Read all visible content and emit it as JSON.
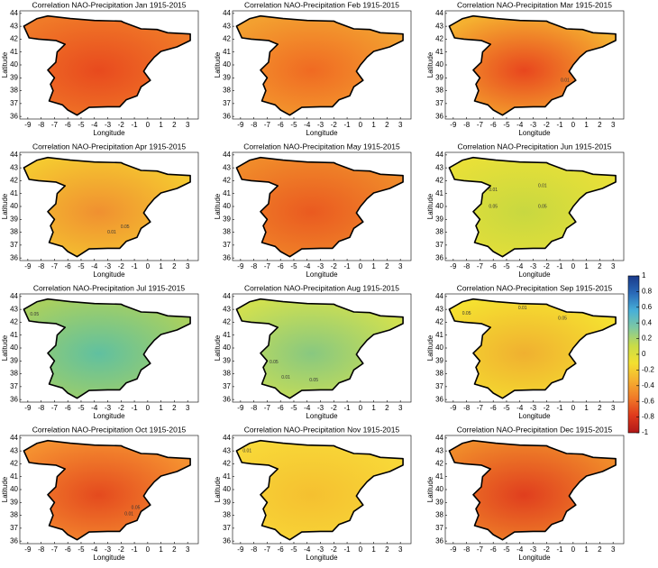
{
  "figure": {
    "xlabel": "Longitude",
    "ylabel": "Latitude",
    "xlim": [
      -9.6,
      3.8
    ],
    "ylim": [
      35.8,
      44.2
    ],
    "xticks": [
      -9,
      -8,
      -7,
      -6,
      -5,
      -4,
      -3,
      -2,
      -1,
      0,
      1,
      2,
      3
    ],
    "yticks": [
      36,
      37,
      38,
      39,
      40,
      41,
      42,
      43,
      44
    ],
    "colorbar": {
      "lim": [
        -1,
        1
      ],
      "ticks": [
        1,
        0.8,
        0.6,
        0.4,
        0.2,
        0,
        -0.2,
        -0.4,
        -0.6,
        -0.8,
        -1
      ],
      "colormap": [
        "#b01818",
        "#e03a1c",
        "#f07a28",
        "#f5b030",
        "#f3e030",
        "#c8dc48",
        "#80c8a0",
        "#48b0d8",
        "#2a6ab8",
        "#1a3a8a"
      ]
    },
    "panels": [
      {
        "title": "Correlation NAO-Precipitation Jan 1915-2015",
        "colors": [
          "#e84a1e",
          "#f07a28"
        ],
        "contour_labels": []
      },
      {
        "title": "Correlation NAO-Precipitation Feb 1915-2015",
        "colors": [
          "#f06a22",
          "#f3a030"
        ],
        "contour_labels": []
      },
      {
        "title": "Correlation NAO-Precipitation Mar 1915-2015",
        "colors": [
          "#e8461e",
          "#f5b030"
        ],
        "contour_labels": [
          "0.01"
        ]
      },
      {
        "title": "Correlation NAO-Precipitation Apr 1915-2015",
        "colors": [
          "#f09030",
          "#f5c830"
        ],
        "contour_labels": [
          "0.01",
          "0.05"
        ]
      },
      {
        "title": "Correlation NAO-Precipitation May 1915-2015",
        "colors": [
          "#ea5a20",
          "#f08a2a"
        ],
        "contour_labels": []
      },
      {
        "title": "Correlation NAO-Precipitation Jun 1915-2015",
        "colors": [
          "#c8d840",
          "#e8e038"
        ],
        "contour_labels": [
          "0.01",
          "0.01",
          "0.05",
          "0.05"
        ]
      },
      {
        "title": "Correlation NAO-Precipitation Jul 1915-2015",
        "colors": [
          "#60c0a0",
          "#a8d060"
        ],
        "contour_labels": [
          "0.05"
        ]
      },
      {
        "title": "Correlation NAO-Precipitation Aug 1915-2015",
        "colors": [
          "#88c880",
          "#d0e050"
        ],
        "contour_labels": [
          "0.05",
          "0.01",
          "0.05"
        ]
      },
      {
        "title": "Correlation NAO-Precipitation Sep 1915-2015",
        "colors": [
          "#f0b030",
          "#f5e030"
        ],
        "contour_labels": [
          "0.05",
          "0.01",
          "0.05"
        ]
      },
      {
        "title": "Correlation NAO-Precipitation Oct 1915-2015",
        "colors": [
          "#e44a1e",
          "#f59030"
        ],
        "contour_labels": [
          "0.01",
          "0.05"
        ]
      },
      {
        "title": "Correlation NAO-Precipitation Nov 1915-2015",
        "colors": [
          "#f5c030",
          "#f8d838"
        ],
        "contour_labels": [
          "0.01"
        ]
      },
      {
        "title": "Correlation NAO-Precipitation Dec 1915-2015",
        "colors": [
          "#e03e1e",
          "#f08a2a"
        ],
        "contour_labels": []
      }
    ]
  }
}
